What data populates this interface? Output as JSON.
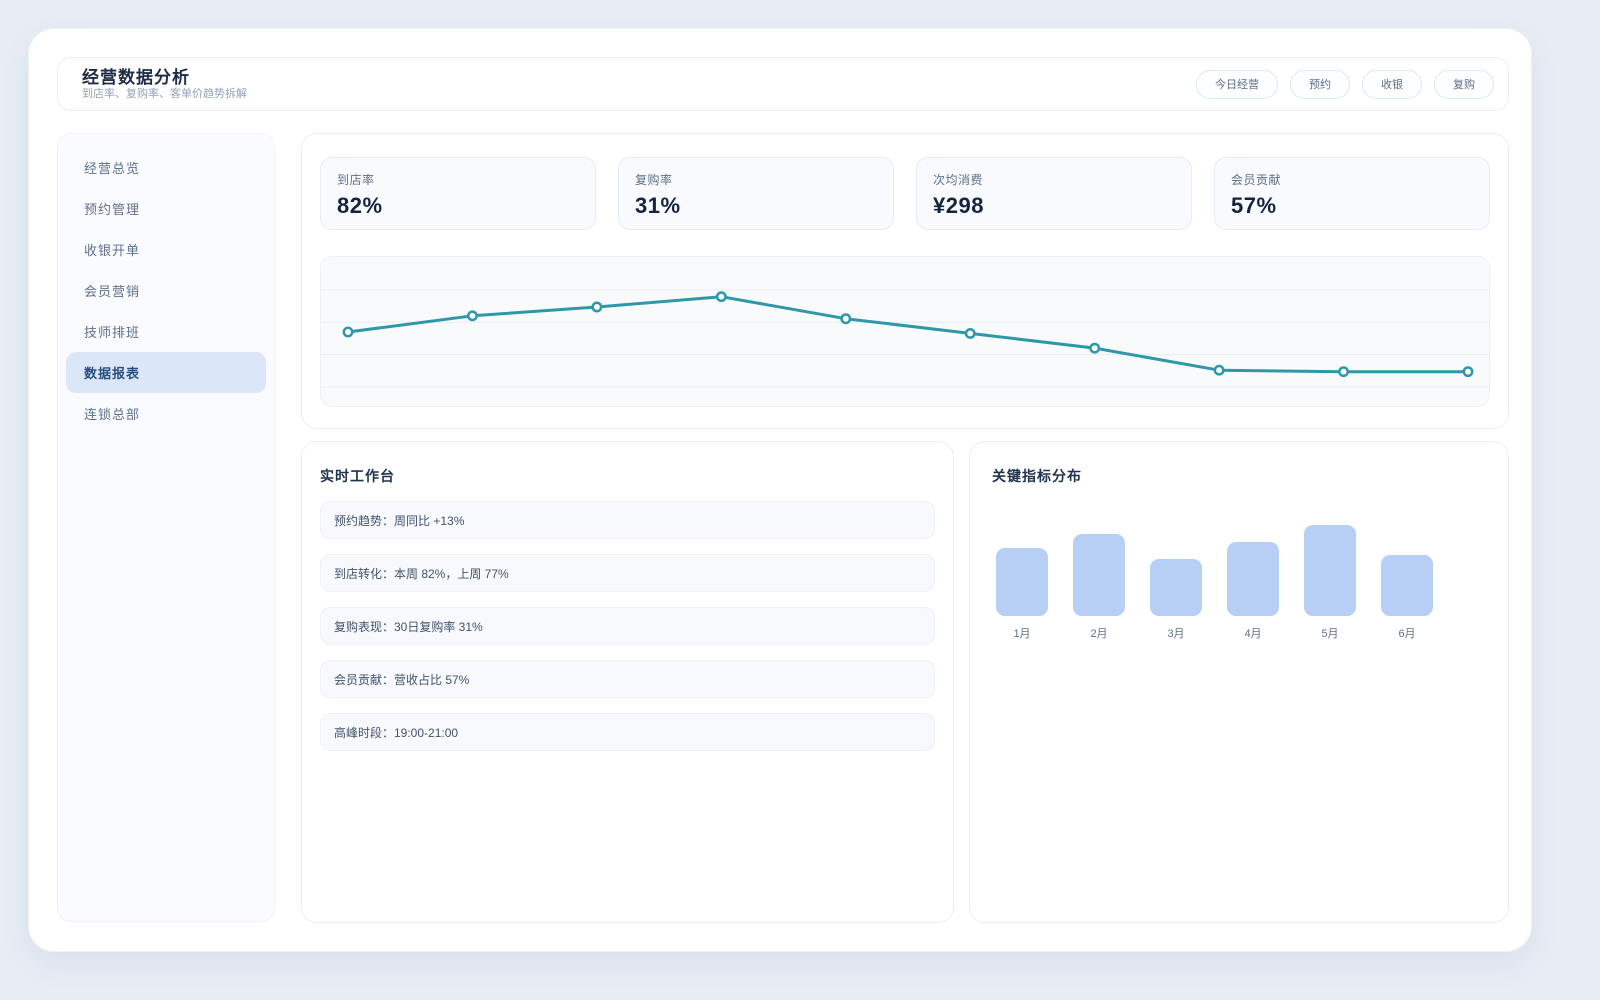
{
  "header": {
    "title": "经营数据分析",
    "subtitle": "到店率、复购率、客单价趋势拆解",
    "buttons": [
      "今日经营",
      "预约",
      "收银",
      "复购"
    ]
  },
  "sidebar": {
    "items": [
      {
        "label": "经营总览",
        "active": false
      },
      {
        "label": "预约管理",
        "active": false
      },
      {
        "label": "收银开单",
        "active": false
      },
      {
        "label": "会员营销",
        "active": false
      },
      {
        "label": "技师排班",
        "active": false
      },
      {
        "label": "数据报表",
        "active": true
      },
      {
        "label": "连锁总部",
        "active": false
      }
    ]
  },
  "kpis": [
    {
      "label": "到店率",
      "value": "82%"
    },
    {
      "label": "复购率",
      "value": "31%"
    },
    {
      "label": "次均消费",
      "value": "¥298"
    },
    {
      "label": "会员贡献",
      "value": "57%"
    }
  ],
  "workbench": {
    "title": "实时工作台",
    "rows": [
      "预约趋势：周同比 +13%",
      "到店转化：本周 82%，上周 77%",
      "复购表现：30日复购率 31%",
      "会员贡献：营收占比 57%",
      "高峰时段：19:00-21:00"
    ]
  },
  "distribution": {
    "title": "关键指标分布"
  },
  "colors": {
    "line": "#2e98a9",
    "marker_fill": "#ffffff",
    "grid": "#e7edf3",
    "bar_fill": "#b7cff4",
    "active_nav_bg": "#dbe7f9",
    "active_nav_text": "#2a4f7e"
  },
  "chart_data": [
    {
      "type": "line",
      "title": "",
      "x": [
        1,
        2,
        3,
        4,
        5,
        6,
        7,
        8,
        9,
        10
      ],
      "values": [
        49,
        60,
        66,
        73,
        58,
        48,
        38,
        23,
        22,
        22
      ],
      "xlabel": "",
      "ylabel": "",
      "ylim": [
        0,
        100
      ],
      "grid": true,
      "gridlines": 4,
      "legend": "none",
      "tick_labels": "none",
      "line_color": "#2e98a9",
      "marker": "open-circle"
    },
    {
      "type": "bar",
      "title": "关键指标分布",
      "categories": [
        "1月",
        "2月",
        "3月",
        "4月",
        "5月",
        "6月"
      ],
      "values": [
        68,
        82,
        57,
        74,
        91,
        61
      ],
      "xlabel": "",
      "ylabel": "",
      "ylim": [
        0,
        100
      ],
      "grid": false,
      "bar_color": "#b7cff4"
    }
  ]
}
